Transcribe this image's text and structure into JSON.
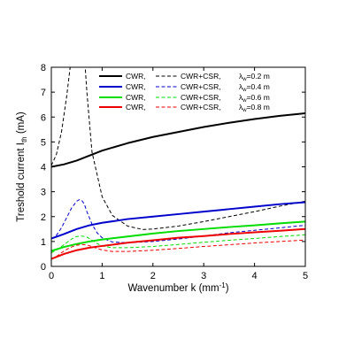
{
  "chart_data": {
    "type": "line",
    "xlabel": "Wavenumber k (mm",
    "xlabel_sup": "-1",
    "xlabel_tail": ")",
    "ylabel": "Treshold current I",
    "ylabel_sub": "th",
    "ylabel_tail": " (mA)",
    "xlim": [
      0,
      5
    ],
    "ylim": [
      0,
      8
    ],
    "xticks": [
      0,
      1,
      2,
      3,
      4,
      5
    ],
    "yticks": [
      0,
      1,
      2,
      3,
      4,
      5,
      6,
      7,
      8
    ],
    "grid": false,
    "legend_position": "top-right",
    "legend": {
      "col1": "CWR,",
      "col2": "CWR+CSR,",
      "col3": [
        "λ",
        "w",
        "=0.2 m",
        "=0.4 m",
        "=0.6 m",
        "=0.8 m"
      ]
    },
    "series": [
      {
        "color": "#000000",
        "style": "solid",
        "x": [
          0.0,
          0.25,
          0.5,
          0.75,
          1.0,
          1.5,
          2.0,
          2.5,
          3.0,
          3.5,
          4.0,
          4.5,
          5.0
        ],
        "y": [
          4.0,
          4.1,
          4.25,
          4.45,
          4.65,
          4.95,
          5.2,
          5.4,
          5.6,
          5.77,
          5.92,
          6.05,
          6.15
        ]
      },
      {
        "color": "#000000",
        "style": "dashed",
        "x": [
          0.0,
          0.1,
          0.2,
          0.3,
          0.4,
          0.5,
          0.6,
          0.7,
          0.8,
          1.0,
          1.2,
          1.5,
          1.8,
          2.0,
          2.5,
          3.0,
          3.5,
          4.0,
          4.5,
          5.0
        ],
        "y": [
          4.05,
          4.5,
          5.4,
          6.8,
          8.5,
          11.0,
          10.0,
          7.0,
          4.6,
          2.8,
          2.05,
          1.62,
          1.48,
          1.5,
          1.62,
          1.8,
          2.0,
          2.2,
          2.42,
          2.62
        ]
      },
      {
        "color": "#0000cc",
        "style": "solid",
        "x": [
          0.0,
          0.25,
          0.5,
          0.75,
          1.0,
          1.5,
          2.0,
          2.5,
          3.0,
          3.5,
          4.0,
          4.5,
          5.0
        ],
        "y": [
          1.12,
          1.3,
          1.5,
          1.65,
          1.75,
          1.9,
          2.0,
          2.1,
          2.2,
          2.3,
          2.4,
          2.5,
          2.58
        ]
      },
      {
        "color": "#0000cc",
        "style": "dashed",
        "x": [
          0.0,
          0.1,
          0.2,
          0.3,
          0.4,
          0.5,
          0.55,
          0.6,
          0.65,
          0.7,
          0.8,
          0.9,
          1.0,
          1.2,
          1.5,
          2.0,
          2.5,
          3.0,
          3.5,
          4.0,
          4.5,
          5.0
        ],
        "y": [
          1.1,
          1.25,
          1.55,
          1.95,
          2.35,
          2.62,
          2.68,
          2.65,
          2.5,
          2.2,
          1.7,
          1.35,
          1.15,
          0.98,
          0.95,
          1.0,
          1.1,
          1.22,
          1.35,
          1.45,
          1.55,
          1.65
        ]
      },
      {
        "color": "#00dd00",
        "style": "solid",
        "x": [
          0.0,
          0.25,
          0.5,
          0.75,
          1.0,
          1.5,
          2.0,
          2.5,
          3.0,
          3.5,
          4.0,
          4.5,
          5.0
        ],
        "y": [
          0.62,
          0.78,
          0.9,
          1.0,
          1.08,
          1.2,
          1.32,
          1.42,
          1.5,
          1.58,
          1.65,
          1.73,
          1.8
        ]
      },
      {
        "color": "#00dd00",
        "style": "dashed",
        "x": [
          0.0,
          0.1,
          0.2,
          0.3,
          0.4,
          0.5,
          0.6,
          0.7,
          0.8,
          0.9,
          1.0,
          1.2,
          1.5,
          2.0,
          2.5,
          3.0,
          3.5,
          4.0,
          4.5,
          5.0
        ],
        "y": [
          0.55,
          0.65,
          0.8,
          0.95,
          1.1,
          1.2,
          1.22,
          1.18,
          1.05,
          0.92,
          0.82,
          0.75,
          0.75,
          0.8,
          0.88,
          0.97,
          1.05,
          1.12,
          1.2,
          1.27
        ]
      },
      {
        "color": "#ee0000",
        "style": "solid",
        "x": [
          0.0,
          0.25,
          0.5,
          0.75,
          1.0,
          1.5,
          2.0,
          2.5,
          3.0,
          3.5,
          4.0,
          4.5,
          5.0
        ],
        "y": [
          0.3,
          0.5,
          0.65,
          0.75,
          0.82,
          0.95,
          1.05,
          1.15,
          1.22,
          1.3,
          1.37,
          1.43,
          1.5
        ]
      },
      {
        "color": "#ee0000",
        "style": "dashed",
        "x": [
          0.0,
          0.1,
          0.2,
          0.3,
          0.4,
          0.5,
          0.6,
          0.7,
          0.8,
          0.9,
          1.0,
          1.2,
          1.5,
          2.0,
          2.5,
          3.0,
          3.5,
          4.0,
          4.5,
          5.0
        ],
        "y": [
          0.28,
          0.4,
          0.55,
          0.68,
          0.78,
          0.85,
          0.88,
          0.86,
          0.8,
          0.72,
          0.66,
          0.6,
          0.6,
          0.65,
          0.72,
          0.8,
          0.87,
          0.94,
          1.0,
          1.06
        ]
      }
    ]
  }
}
